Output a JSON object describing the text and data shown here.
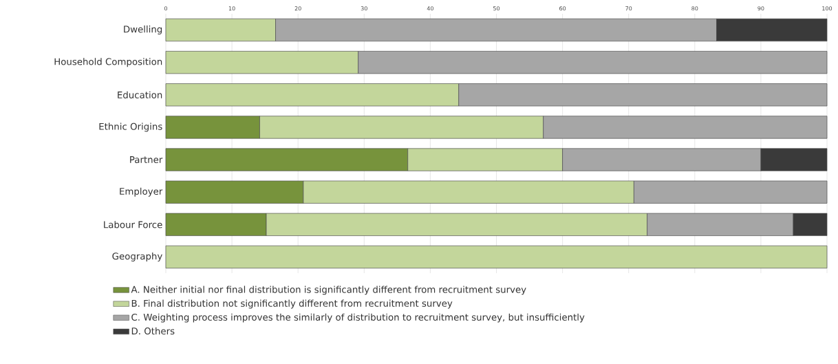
{
  "chart_data": {
    "type": "bar",
    "orientation": "horizontal",
    "stacked": true,
    "categories": [
      "Dwelling",
      "Household Composition",
      "Education",
      "Ethnic Origins",
      "Partner",
      "Employer",
      "Labour Force",
      "Geography"
    ],
    "series": [
      {
        "name": "A. Neither initial nor final distribution is significantly different from recruitment survey",
        "color": "#77933c",
        "values": [
          null,
          null,
          null,
          14.2,
          36.6,
          20.8,
          15.2,
          null
        ]
      },
      {
        "name": "B. Final distribution not significantly different from recruitment survey",
        "color": "#c3d69b",
        "values": [
          16.6,
          29.1,
          44.3,
          42.9,
          23.4,
          50.0,
          57.6,
          100
        ]
      },
      {
        "name": "C. Weighting process improves the similarly of distribution to recruitment survey, but insufficiently",
        "color": "#a6a6a6",
        "values": [
          66.7,
          70.9,
          55.7,
          42.9,
          30.0,
          29.2,
          22.1,
          null
        ]
      },
      {
        "name": "D. Others",
        "color": "#3a3a3a",
        "values": [
          16.7,
          null,
          null,
          null,
          10.0,
          null,
          5.1,
          null
        ]
      }
    ],
    "xlim": [
      0,
      100
    ],
    "xticks": [
      0,
      10,
      20,
      30,
      40,
      50,
      60,
      70,
      80,
      90,
      100
    ],
    "grid": "x",
    "legend": "bottom"
  }
}
